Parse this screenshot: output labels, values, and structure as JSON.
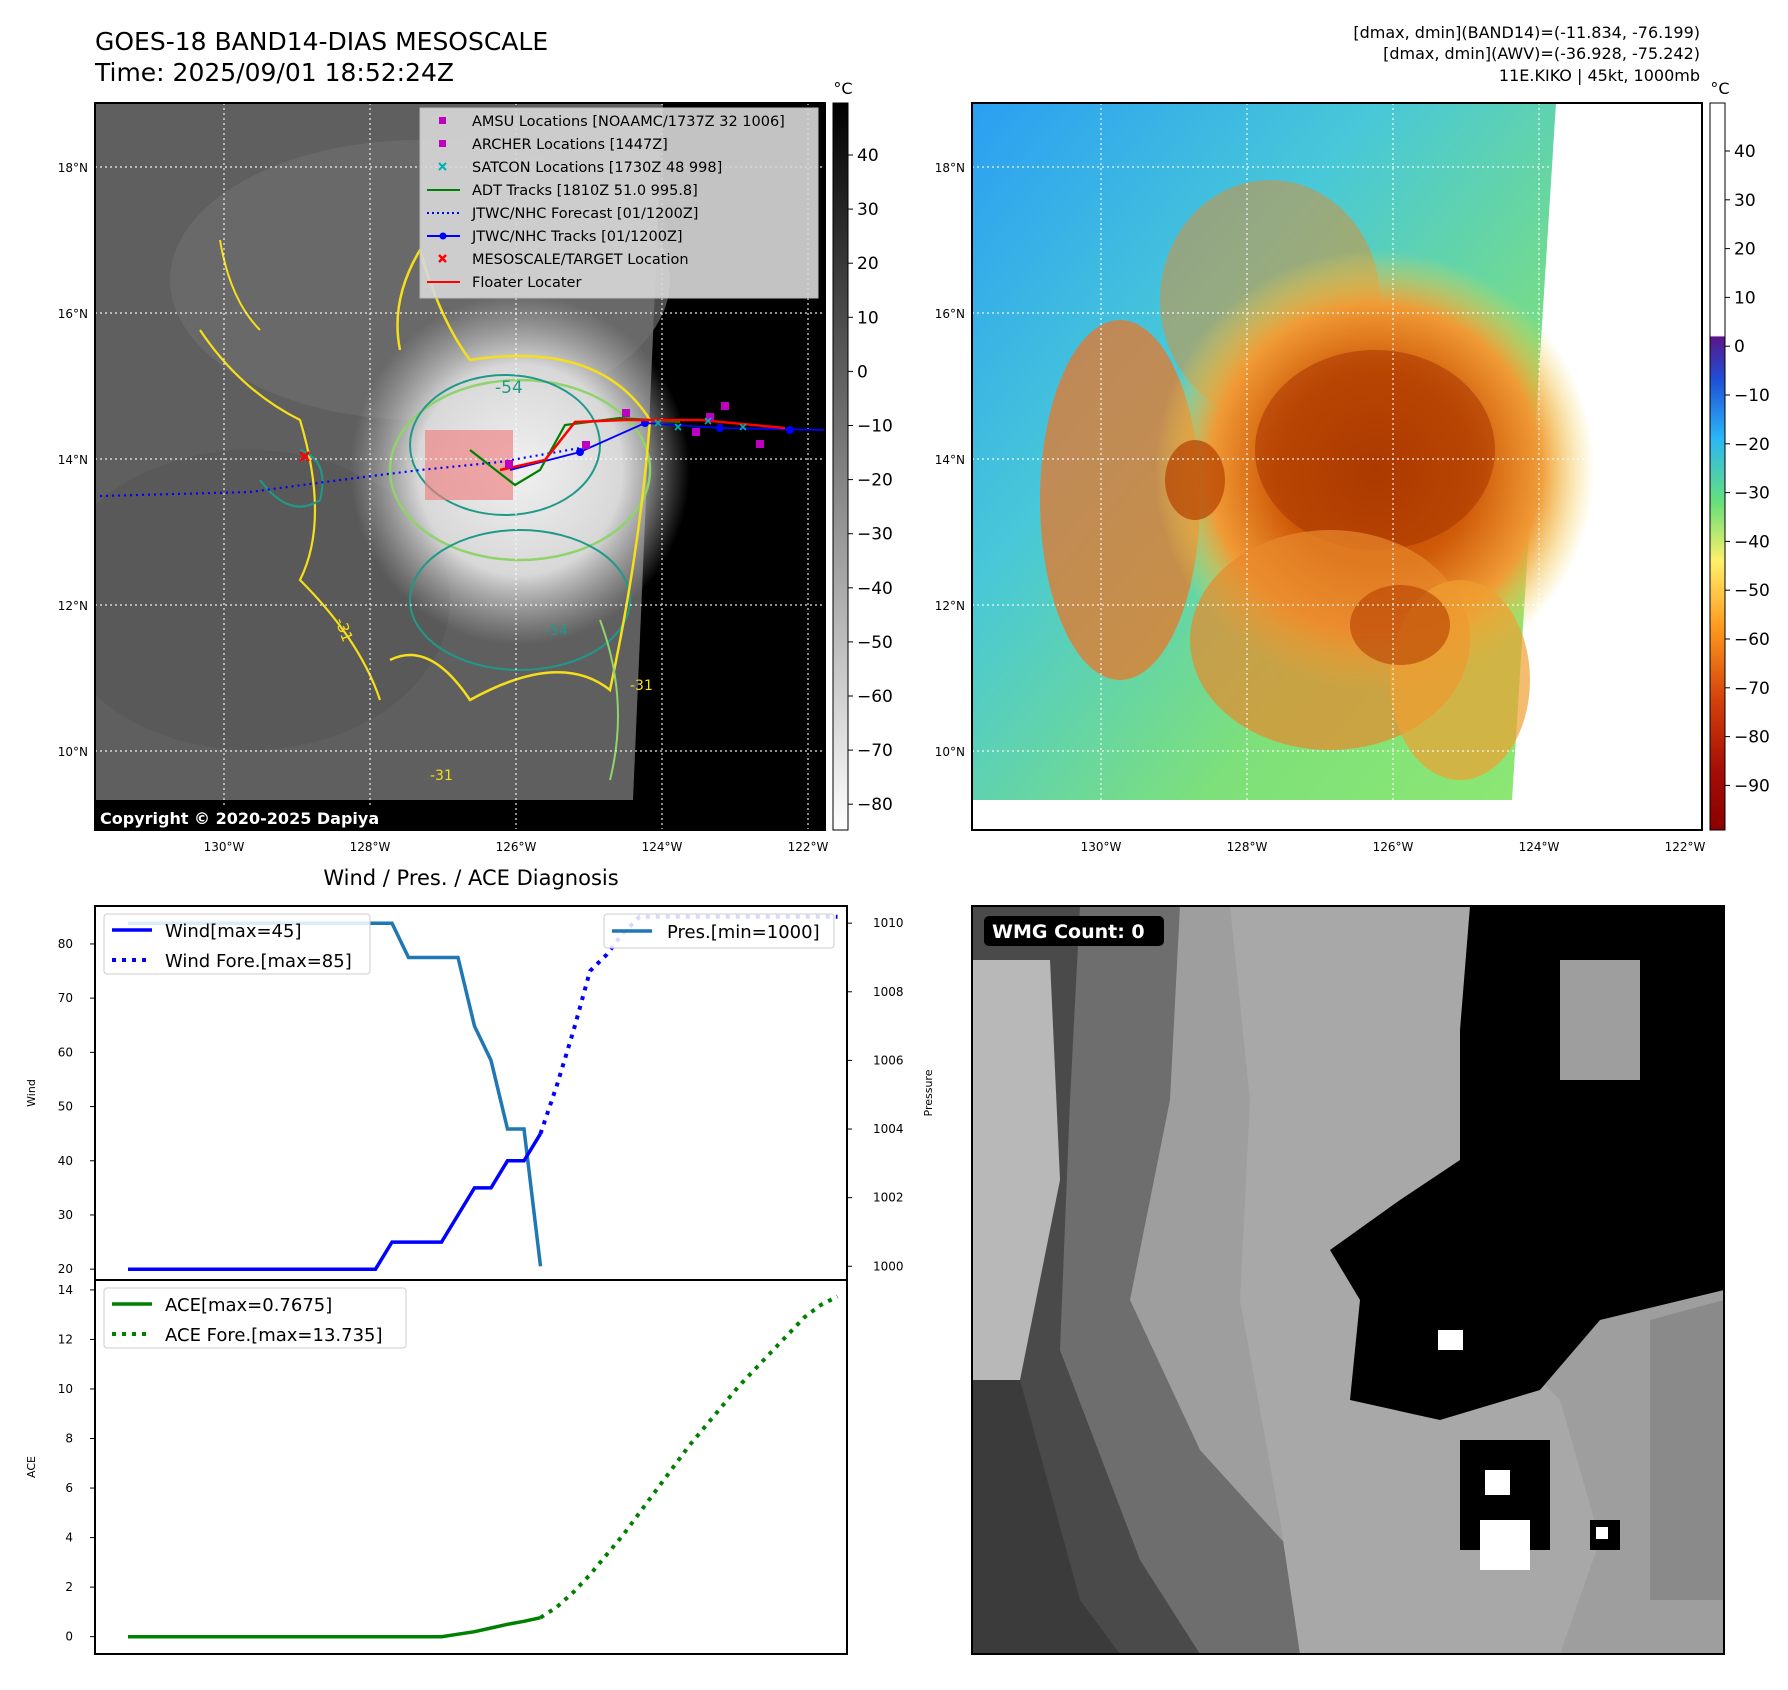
{
  "header": {
    "title_line1": "GOES-18 BAND14-DIAS MESOSCALE",
    "title_line2": "Time: 2025/09/01 18:52:24Z",
    "info_line1": "[dmax, dmin](BAND14)=(-11.834, -76.199)",
    "info_line2": "[dmax, dmin](AWV)=(-36.928, -75.242)",
    "info_line3": "11E.KIKO | 45kt, 1000mb"
  },
  "map": {
    "lat_labels": [
      "18°N",
      "16°N",
      "14°N",
      "12°N",
      "10°N"
    ],
    "lon_labels": [
      "130°W",
      "128°W",
      "126°W",
      "124°W",
      "122°W"
    ],
    "copyright": "Copyright © 2020-2025 Dapiya",
    "contour_labels": [
      "-54",
      "-31",
      "-31",
      "-31",
      "-54"
    ],
    "legend": [
      {
        "label": "AMSU Locations [NOAAMC/1737Z 32 1006]",
        "color": "#c000c0",
        "marker": "square"
      },
      {
        "label": "ARCHER Locations [1447Z]",
        "color": "#c000c0",
        "marker": "square"
      },
      {
        "label": "SATCON Locations [1730Z 48 998]",
        "color": "#00b0b0",
        "marker": "x"
      },
      {
        "label": "ADT Tracks [1810Z 51.0 995.8]",
        "color": "#008000",
        "marker": "line"
      },
      {
        "label": "JTWC/NHC Forecast [01/1200Z]",
        "color": "#0000ff",
        "marker": "dotted"
      },
      {
        "label": "JTWC/NHC Tracks [01/1200Z]",
        "color": "#0000ff",
        "marker": "line-dot"
      },
      {
        "label": "MESOSCALE/TARGET Location",
        "color": "#ff0000",
        "marker": "x"
      },
      {
        "label": "Floater Locater",
        "color": "#ff0000",
        "marker": "line"
      }
    ]
  },
  "colorbar1": {
    "unit": "°C",
    "ticks": [
      "40",
      "30",
      "20",
      "10",
      "0",
      "−10",
      "−20",
      "−30",
      "−40",
      "−50",
      "−60",
      "−70",
      "−80"
    ]
  },
  "colorbar2": {
    "unit": "°C",
    "ticks": [
      "40",
      "30",
      "20",
      "10",
      "0",
      "−10",
      "−20",
      "−30",
      "−40",
      "−50",
      "−60",
      "−70",
      "−80",
      "−90"
    ]
  },
  "wmg": {
    "label": "WMG Count: 0"
  },
  "chart_data": [
    {
      "type": "line",
      "title": "Wind / Pres. / ACE Diagnosis",
      "ylabel": "Wind",
      "ylim": [
        18,
        87
      ],
      "yticks": [
        20,
        30,
        40,
        50,
        60,
        70,
        80
      ],
      "series": [
        {
          "name": "Wind[max=45]",
          "color": "#0000ff",
          "style": "solid",
          "values": [
            20,
            20,
            20,
            20,
            20,
            20,
            20,
            20,
            20,
            20,
            20,
            20,
            20,
            20,
            20,
            20,
            25,
            25,
            25,
            25,
            30,
            35,
            35,
            40,
            40,
            45
          ]
        },
        {
          "name": "Wind Fore.[max=85]",
          "color": "#0000ff",
          "style": "dotted",
          "values": [
            45,
            54,
            64,
            75,
            78,
            82,
            85,
            85,
            85,
            85,
            85,
            85,
            85,
            85,
            85,
            85,
            85,
            85,
            85
          ]
        }
      ],
      "secondary": {
        "ylabel": "Pressure",
        "ylim": [
          999.6,
          1010.5
        ],
        "yticks": [
          1000,
          1002,
          1004,
          1006,
          1008,
          1010
        ],
        "series": [
          {
            "name": "Pres.[min=1000]",
            "color": "#1f77b4",
            "style": "solid",
            "values": [
              1010,
              1010,
              1010,
              1010,
              1010,
              1010,
              1010,
              1010,
              1010,
              1010,
              1010,
              1010,
              1010,
              1010,
              1010,
              1010,
              1010,
              1009,
              1009,
              1009,
              1009,
              1007,
              1006,
              1004,
              1004,
              1000
            ]
          }
        ]
      }
    },
    {
      "type": "line",
      "ylabel": "ACE",
      "ylim": [
        -0.7,
        14.4
      ],
      "yticks": [
        0,
        2,
        4,
        6,
        8,
        10,
        12,
        14
      ],
      "series": [
        {
          "name": "ACE[max=0.7675]",
          "color": "#008000",
          "style": "solid",
          "values": [
            0,
            0,
            0,
            0,
            0,
            0,
            0,
            0,
            0,
            0,
            0,
            0,
            0,
            0,
            0,
            0,
            0,
            0,
            0,
            0,
            0.1,
            0.2,
            0.35,
            0.5,
            0.62,
            0.7675
          ]
        },
        {
          "name": "ACE Fore.[max=13.735]",
          "color": "#008000",
          "style": "dotted",
          "values": [
            0.7675,
            1.2,
            1.8,
            2.5,
            3.3,
            4.1,
            5.0,
            5.9,
            6.8,
            7.7,
            8.5,
            9.3,
            10.1,
            10.8,
            11.5,
            12.2,
            12.9,
            13.4,
            13.735
          ]
        }
      ]
    }
  ]
}
